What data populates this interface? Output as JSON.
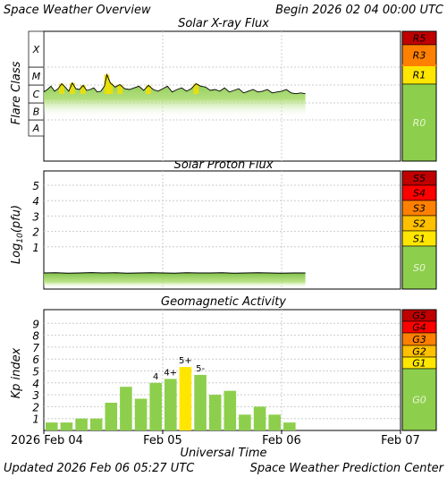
{
  "header": {
    "title": "Space Weather Overview",
    "begin": "Begin 2026 02 04 00:00 UTC"
  },
  "footer": {
    "updated": "Updated 2026 Feb 06 05:27 UTC",
    "credit": "Space Weather Prediction Center"
  },
  "x_axis": {
    "label": "Universal Time",
    "ticks": [
      "2026 Feb 04",
      "Feb 05",
      "Feb 06",
      "Feb 07"
    ]
  },
  "colors": {
    "frame": "#000000",
    "grid": "#cccccc",
    "fill_green": "#8dcf4c",
    "fill_yellow": "#f2e000",
    "level_green": "#8dcf4c",
    "level_yellow": "#ffe600",
    "level_gold": "#ffc000",
    "level_orange": "#ff8000",
    "level_red": "#ff0000",
    "level_darkred": "#c00000",
    "level_text": "#ffffff"
  },
  "chart_data": [
    {
      "type": "area",
      "title": "Solar X-ray Flux",
      "ylabel": "Flare Class",
      "y_scale": "log",
      "y_categories": [
        "A",
        "B",
        "C",
        "M",
        "X"
      ],
      "x_range_days": [
        0,
        3
      ],
      "data_end_day": 2.2,
      "series": [
        {
          "x": [
            0.0,
            0.03,
            0.06,
            0.09,
            0.12,
            0.15,
            0.18,
            0.21,
            0.24,
            0.27,
            0.3,
            0.33,
            0.36,
            0.39,
            0.42,
            0.45,
            0.48,
            0.51,
            0.53,
            0.56,
            0.6,
            0.64,
            0.68,
            0.72,
            0.76,
            0.8,
            0.84,
            0.88,
            0.92,
            0.96,
            1.0,
            1.04,
            1.08,
            1.12,
            1.16,
            1.2,
            1.24,
            1.28,
            1.32,
            1.36,
            1.4,
            1.44,
            1.48,
            1.52,
            1.56,
            1.6,
            1.64,
            1.68,
            1.72,
            1.76,
            1.8,
            1.84,
            1.88,
            1.92,
            1.96,
            2.0,
            2.04,
            2.08,
            2.12,
            2.16,
            2.2
          ],
          "class_level": [
            2.55,
            2.7,
            2.9,
            2.6,
            2.75,
            3.05,
            2.85,
            2.6,
            3.1,
            2.75,
            2.7,
            2.95,
            2.65,
            2.7,
            2.8,
            2.55,
            2.6,
            2.9,
            3.6,
            3.1,
            2.85,
            3.0,
            2.75,
            2.7,
            2.8,
            2.9,
            2.65,
            2.95,
            2.7,
            2.6,
            2.75,
            2.9,
            2.55,
            2.7,
            2.8,
            2.6,
            2.75,
            3.05,
            2.9,
            2.85,
            2.65,
            2.7,
            2.6,
            2.8,
            2.55,
            2.65,
            2.75,
            2.5,
            2.6,
            2.7,
            2.55,
            2.6,
            2.7,
            2.5,
            2.55,
            2.6,
            2.7,
            2.5,
            2.45,
            2.5,
            2.45
          ]
        }
      ],
      "levels": [
        {
          "label": "R5",
          "color": "#c00000"
        },
        {
          "label": "R3",
          "color": "#ff8000"
        },
        {
          "label": "R1",
          "color": "#ffe600"
        },
        {
          "label": "R0",
          "color": "#8dcf4c"
        }
      ]
    },
    {
      "type": "area",
      "title": "Solar Proton Flux",
      "ylabel": "Log10(pfu)",
      "ylabel_base": "Log",
      "ylabel_sub": "10",
      "ylabel_rest": "(pfu)",
      "y_scale": "log",
      "y_ticks": [
        1,
        2,
        3,
        4,
        5
      ],
      "ylim": [
        -1,
        6
      ],
      "x_range_days": [
        0,
        3
      ],
      "data_end_day": 2.2,
      "series": [
        {
          "x": [
            0.0,
            0.1,
            0.2,
            0.3,
            0.4,
            0.5,
            0.6,
            0.7,
            0.8,
            0.9,
            1.0,
            1.1,
            1.2,
            1.3,
            1.4,
            1.5,
            1.6,
            1.7,
            1.8,
            1.9,
            2.0,
            2.1,
            2.2
          ],
          "log_pfu": [
            -0.15,
            -0.16,
            -0.14,
            -0.15,
            -0.17,
            -0.15,
            -0.16,
            -0.14,
            -0.15,
            -0.16,
            -0.15,
            -0.14,
            -0.16,
            -0.15,
            -0.15,
            -0.16,
            -0.14,
            -0.15,
            -0.16,
            -0.15,
            -0.14,
            -0.15,
            -0.15
          ]
        }
      ],
      "levels": [
        {
          "label": "S5",
          "color": "#c00000"
        },
        {
          "label": "S4",
          "color": "#ff0000"
        },
        {
          "label": "S3",
          "color": "#ff8000"
        },
        {
          "label": "S2",
          "color": "#ffc000"
        },
        {
          "label": "S1",
          "color": "#ffe600"
        },
        {
          "label": "S0",
          "color": "#8dcf4c"
        }
      ]
    },
    {
      "type": "bar",
      "title": "Geomagnetic Activity",
      "ylabel": "Kp index",
      "y_ticks": [
        1,
        2,
        3,
        4,
        5,
        6,
        7,
        8,
        9
      ],
      "ylim": [
        0,
        10
      ],
      "x_range_days": [
        0,
        3
      ],
      "bar_width_days": 0.125,
      "values": [
        0.67,
        0.67,
        1.0,
        1.0,
        2.33,
        3.67,
        2.67,
        4.0,
        4.33,
        5.33,
        4.67,
        3.0,
        3.33,
        1.33,
        2.0,
        1.33,
        0.67
      ],
      "bar_labels": [
        "",
        "",
        "",
        "",
        "",
        "",
        "",
        "4",
        "4+",
        "5+",
        "5-",
        "",
        "",
        "",
        "",
        "",
        ""
      ],
      "levels": [
        {
          "label": "G5",
          "color": "#c00000"
        },
        {
          "label": "G4",
          "color": "#ff0000"
        },
        {
          "label": "G3",
          "color": "#ff8000"
        },
        {
          "label": "G2",
          "color": "#ffc000"
        },
        {
          "label": "G1",
          "color": "#ffe600"
        },
        {
          "label": "G0",
          "color": "#8dcf4c"
        }
      ]
    }
  ]
}
